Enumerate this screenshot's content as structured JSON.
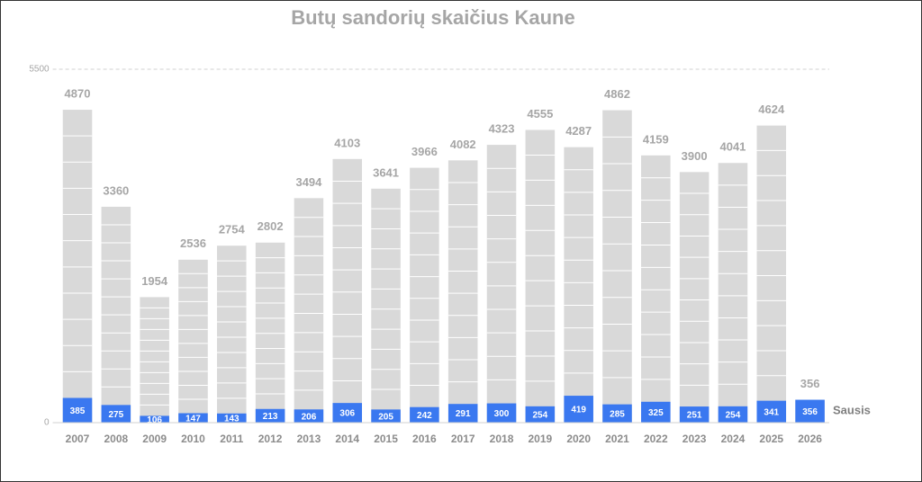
{
  "chart_data": {
    "type": "bar",
    "title": "Butų sandorių skaičius Kaune",
    "categories": [
      "2007",
      "2008",
      "2009",
      "2010",
      "2011",
      "2012",
      "2013",
      "2014",
      "2015",
      "2016",
      "2017",
      "2018",
      "2019",
      "2020",
      "2021",
      "2022",
      "2023",
      "2024",
      "2025",
      "2026"
    ],
    "series": [
      {
        "color": "#d9d9d9",
        "values": [
          4870,
          3360,
          1954,
          2536,
          2754,
          2802,
          3494,
          4103,
          3641,
          3966,
          4082,
          4323,
          4555,
          4287,
          4862,
          4159,
          3900,
          4041,
          4624,
          356
        ]
      },
      {
        "name": "Sausis",
        "color": "#3a78f0",
        "values": [
          385,
          275,
          106,
          147,
          143,
          213,
          206,
          306,
          205,
          242,
          291,
          300,
          254,
          419,
          285,
          325,
          251,
          254,
          341,
          356
        ]
      }
    ],
    "ylim": [
      0,
      5500
    ],
    "yticks": [
      0,
      5500
    ],
    "grid": true
  }
}
